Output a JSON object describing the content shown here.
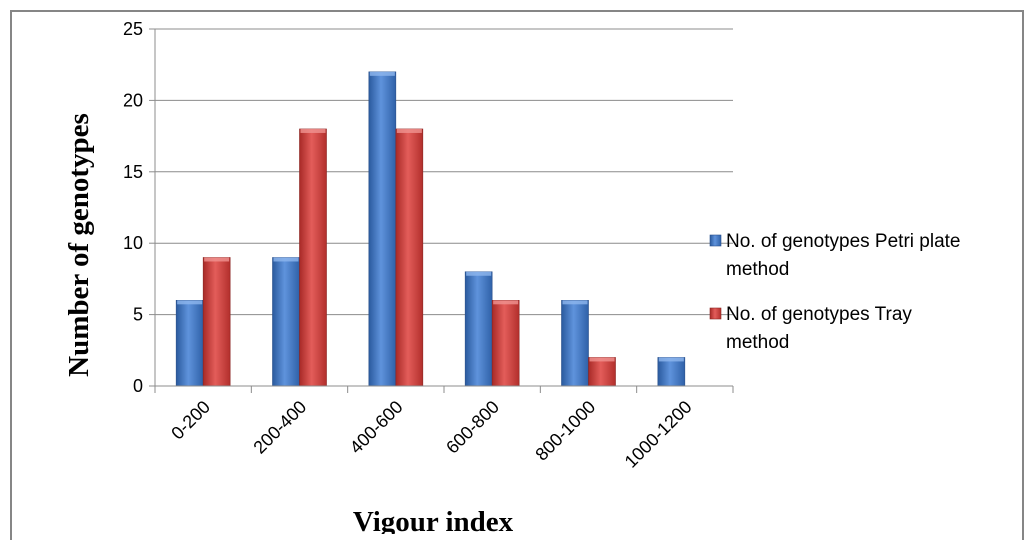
{
  "chart_data": {
    "type": "bar",
    "title": "",
    "xlabel": "Vigour index",
    "ylabel": "Number of genotypes",
    "categories": [
      "0-200",
      "200-400",
      "400-600",
      "600-800",
      "800-1000",
      "1000-1200"
    ],
    "series": [
      {
        "name": "No. of genotypes Petri plate method",
        "values": [
          6,
          9,
          22,
          8,
          6,
          2
        ],
        "color": "#3d74c4"
      },
      {
        "name": "No. of genotypes Tray method",
        "values": [
          9,
          18,
          18,
          6,
          2,
          0
        ],
        "color": "#cc3b38"
      }
    ],
    "ylim": [
      0,
      25
    ],
    "yticks": [
      0,
      5,
      10,
      15,
      20,
      25
    ],
    "grid": true,
    "legend_position": "right"
  }
}
